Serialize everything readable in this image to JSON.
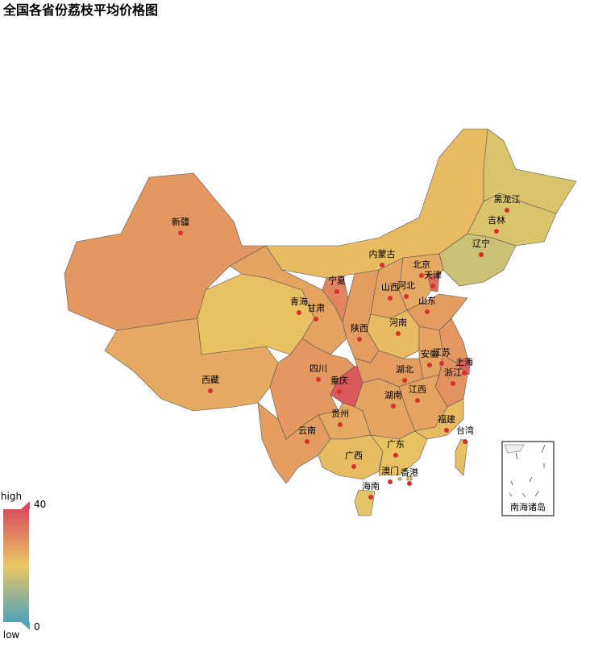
{
  "chart_data": {
    "type": "map",
    "title": "全国各省份荔枝平均价格图",
    "regions": [
      {
        "name": "新疆",
        "value": 28
      },
      {
        "name": "西藏",
        "value": 25
      },
      {
        "name": "青海",
        "value": 21
      },
      {
        "name": "甘肃",
        "value": 26
      },
      {
        "name": "宁夏",
        "value": 31
      },
      {
        "name": "内蒙古",
        "value": 22
      },
      {
        "name": "黑龙江",
        "value": 18
      },
      {
        "name": "吉林",
        "value": 18
      },
      {
        "name": "辽宁",
        "value": 16
      },
      {
        "name": "北京",
        "value": 27
      },
      {
        "name": "天津",
        "value": 35
      },
      {
        "name": "河北",
        "value": 25
      },
      {
        "name": "山西",
        "value": 26
      },
      {
        "name": "山东",
        "value": 27
      },
      {
        "name": "河南",
        "value": 22
      },
      {
        "name": "陕西",
        "value": 27
      },
      {
        "name": "四川",
        "value": 28
      },
      {
        "name": "重庆",
        "value": 38
      },
      {
        "name": "湖北",
        "value": 27
      },
      {
        "name": "安徽",
        "value": 26
      },
      {
        "name": "江苏",
        "value": 28
      },
      {
        "name": "上海",
        "value": 37
      },
      {
        "name": "浙江",
        "value": 29
      },
      {
        "name": "江西",
        "value": 26
      },
      {
        "name": "湖南",
        "value": 26
      },
      {
        "name": "贵州",
        "value": 25
      },
      {
        "name": "云南",
        "value": 27
      },
      {
        "name": "广西",
        "value": 22
      },
      {
        "name": "广东",
        "value": 21
      },
      {
        "name": "福建",
        "value": 22
      },
      {
        "name": "台湾",
        "value": 21
      },
      {
        "name": "海南",
        "value": 19
      },
      {
        "name": "香港",
        "value": 22
      },
      {
        "name": "澳门",
        "value": 22
      }
    ],
    "visual_map": {
      "range": [
        0,
        40
      ],
      "text": [
        "high",
        "low"
      ],
      "colors": [
        "#50a3ba",
        "#eac763",
        "#d94e5d"
      ]
    },
    "inset_label": "南海诸岛"
  }
}
